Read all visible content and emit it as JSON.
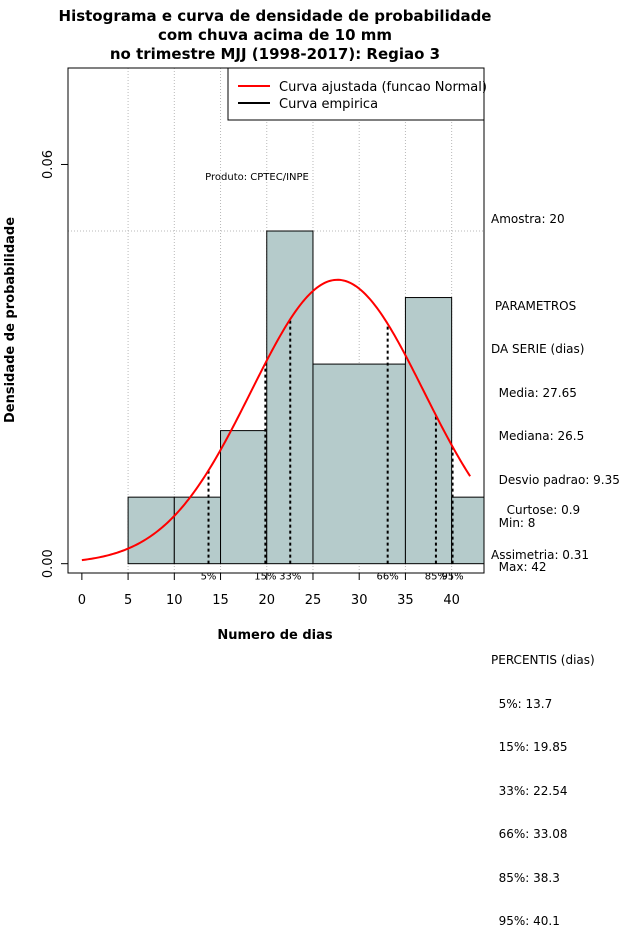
{
  "chart_data": {
    "type": "histogram",
    "title_lines": [
      "Histograma e curva de densidade de probabilidade",
      "com chuva acima de 10 mm",
      "no trimestre MJJ (1998-2017): Regiao 3"
    ],
    "xlabel": "Numero de dias",
    "ylabel": "Densidade de probabilidade",
    "xlim": [
      -1.5,
      43.5
    ],
    "ylim": [
      -0.0014,
      0.0745
    ],
    "x_ticks": [
      0,
      5,
      10,
      15,
      20,
      25,
      30,
      35,
      40
    ],
    "y_ticks": [
      0.0,
      0.06
    ],
    "y_tick_labels": [
      "0.00",
      "0.06"
    ],
    "h_gridline": 0.05,
    "bins": [
      {
        "from": 5,
        "to": 10,
        "density": 0.01
      },
      {
        "from": 10,
        "to": 15,
        "density": 0.01
      },
      {
        "from": 15,
        "to": 20,
        "density": 0.02
      },
      {
        "from": 20,
        "to": 25,
        "density": 0.05
      },
      {
        "from": 25,
        "to": 35,
        "density": 0.03
      },
      {
        "from": 35,
        "to": 40,
        "density": 0.04
      },
      {
        "from": 40,
        "to": 45,
        "density": 0.01
      }
    ],
    "fitted_curve": {
      "distribution": "normal",
      "mean": 27.65,
      "sd": 9.35,
      "x_from": 0,
      "x_to": 42,
      "color": "#ff0000"
    },
    "percentile_markers": [
      {
        "label": "5%",
        "x": 13.7
      },
      {
        "label": "15%",
        "x": 19.85
      },
      {
        "label": "33%",
        "x": 22.54
      },
      {
        "label": "66%",
        "x": 33.08
      },
      {
        "label": "85%",
        "x": 38.3
      },
      {
        "label": "95%",
        "x": 40.1
      }
    ],
    "legend": {
      "position": "top-right",
      "entries": [
        {
          "label": "Curva ajustada (funcao Normal)",
          "color": "#ff0000"
        },
        {
          "label": "Curva empirica",
          "color": "#000000"
        }
      ]
    },
    "annotation": "Produto: CPTEC/INPE",
    "bar_color": "#b5cbcb"
  },
  "stats_panel": {
    "amostra": "Amostra: 20",
    "params_title_1": " PARAMETROS",
    "params_title_2": "DA SERIE (dias)",
    "media": "  Media: 27.65",
    "mediana": "  Mediana: 26.5",
    "desvio": "  Desvio padrao: 9.35",
    "min": "  Min: 8",
    "max": "  Max: 42",
    "percentis_title": "PERCENTIS (dias)",
    "p5": "  5%: 13.7",
    "p15": "  15%: 19.85",
    "p33": "  33%: 22.54",
    "p66": "  66%: 33.08",
    "p85": "  85%: 38.3",
    "p95": "  95%: 40.1",
    "curtose": "  Curtose: 0.9",
    "assimetria": "Assimetria: 0.31"
  }
}
